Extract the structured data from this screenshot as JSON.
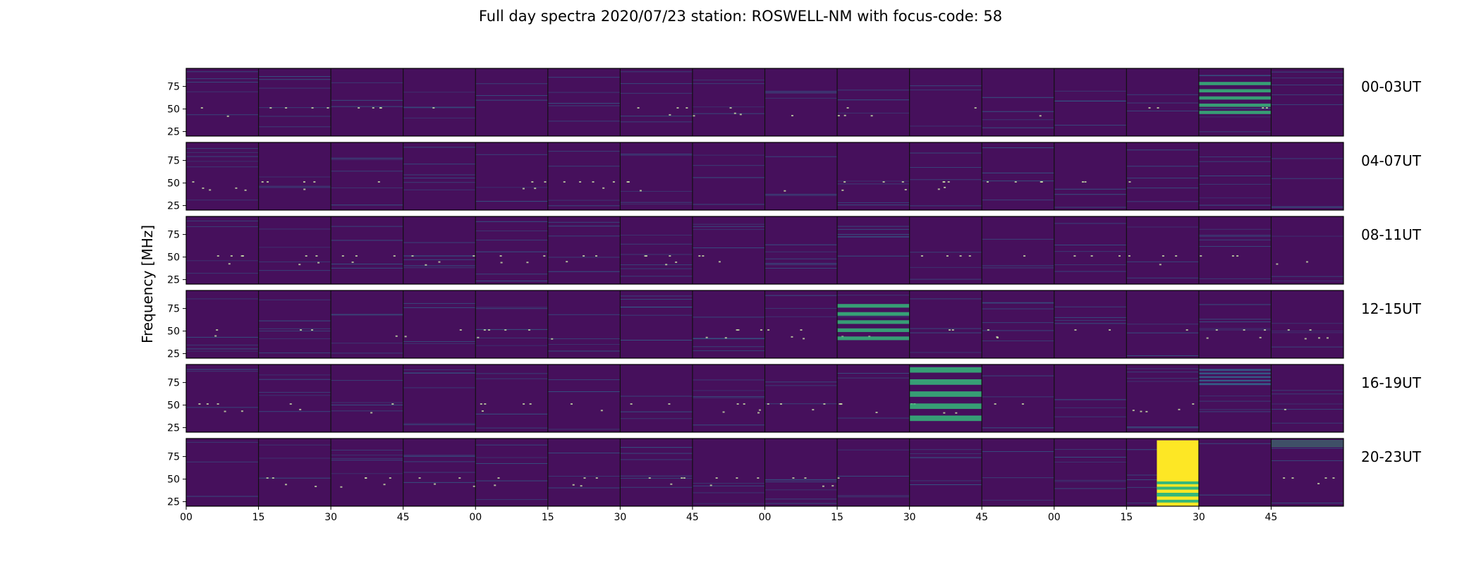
{
  "chart_data": {
    "type": "heatmap",
    "title": "Full day spectra 2020/07/23 station: ROSWELL-NM with focus-code: 58",
    "ylabel": "Frequency [MHz]",
    "ylim": [
      20,
      95
    ],
    "yticks": [
      25,
      50,
      75
    ],
    "xticks": [
      "00",
      "15",
      "30",
      "45",
      "00",
      "15",
      "30",
      "45",
      "00",
      "15",
      "30",
      "45",
      "00",
      "15",
      "30",
      "45"
    ],
    "grid": false,
    "colormap": "viridis",
    "colors": {
      "background": "#46105c",
      "mid": "#31688e",
      "bright": "#35b779",
      "high": "#fde725"
    },
    "rows": [
      {
        "label": "00-03UT",
        "start_hour": 0
      },
      {
        "label": "04-07UT",
        "start_hour": 4
      },
      {
        "label": "08-11UT",
        "start_hour": 8
      },
      {
        "label": "12-15UT",
        "start_hour": 12
      },
      {
        "label": "16-19UT",
        "start_hour": 16
      },
      {
        "label": "20-23UT",
        "start_hour": 20
      }
    ],
    "panels_per_row": 16,
    "panel_minutes": 15,
    "strong_bursts": [
      {
        "row": "00-03UT",
        "panel": 14,
        "freq_range": [
          40,
          80
        ],
        "level": "bright"
      },
      {
        "row": "12-15UT",
        "panel": 9,
        "freq_range": [
          35,
          80
        ],
        "level": "bright"
      },
      {
        "row": "16-19UT",
        "panel": 10,
        "freq_range": [
          25,
          92
        ],
        "level": "bright"
      },
      {
        "row": "16-19UT",
        "panel": 14,
        "freq_range": [
          70,
          90
        ],
        "level": "mid"
      },
      {
        "row": "20-23UT",
        "panel": 13,
        "freq_range": [
          20,
          93
        ],
        "level": "high"
      },
      {
        "row": "20-23UT",
        "panel": 15,
        "freq_range": [
          85,
          93
        ],
        "level": "bright"
      }
    ]
  }
}
